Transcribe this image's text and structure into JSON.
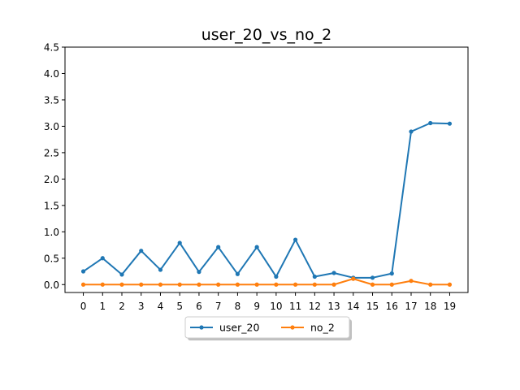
{
  "chart_data": {
    "type": "line",
    "title": "user_20_vs_no_2",
    "xlabel": "",
    "ylabel": "",
    "x": [
      0,
      1,
      2,
      3,
      4,
      5,
      6,
      7,
      8,
      9,
      10,
      11,
      12,
      13,
      14,
      15,
      16,
      17,
      18,
      19
    ],
    "x_tick_labels": [
      "0",
      "1",
      "2",
      "3",
      "4",
      "5",
      "6",
      "7",
      "8",
      "9",
      "10",
      "11",
      "12",
      "13",
      "14",
      "15",
      "16",
      "17",
      "18",
      "19"
    ],
    "ylim": [
      -0.15,
      4.5
    ],
    "y_ticks": [
      0.0,
      0.5,
      1.0,
      1.5,
      2.0,
      2.5,
      3.0,
      3.5,
      4.0,
      4.5
    ],
    "y_tick_labels": [
      "0.0",
      "0.5",
      "1.0",
      "1.5",
      "2.0",
      "2.5",
      "3.0",
      "3.5",
      "4.0",
      "4.5"
    ],
    "grid": false,
    "legend_position": "bottom-center",
    "series": [
      {
        "name": "user_20",
        "color": "#1f77b4",
        "values": [
          0.25,
          0.5,
          0.19,
          0.64,
          0.28,
          0.79,
          0.24,
          0.71,
          0.2,
          0.71,
          0.15,
          0.85,
          0.15,
          0.22,
          0.13,
          0.13,
          0.21,
          2.9,
          3.06,
          3.05
        ]
      },
      {
        "name": "no_2",
        "color": "#ff7f0e",
        "values": [
          0.0,
          0.0,
          0.0,
          0.0,
          0.0,
          0.0,
          0.0,
          0.0,
          0.0,
          0.0,
          0.0,
          0.0,
          0.0,
          0.0,
          0.11,
          0.0,
          0.0,
          0.07,
          0.0,
          0.0
        ]
      }
    ]
  }
}
